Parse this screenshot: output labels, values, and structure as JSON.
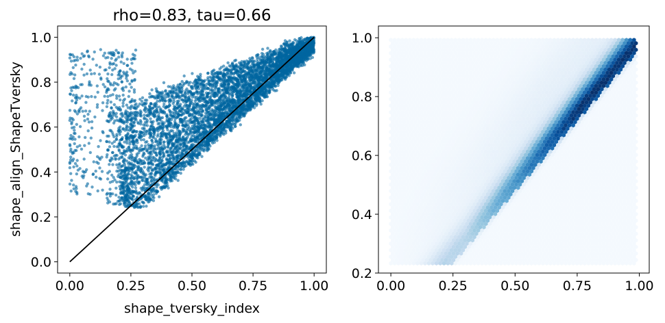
{
  "chart_data": [
    {
      "type": "scatter",
      "title": "rho=0.83, tau=0.66",
      "xlabel": "shape_tversky_index",
      "ylabel": "shape_align_ShapeTversky",
      "xlim": [
        -0.05,
        1.05
      ],
      "ylim": [
        -0.05,
        1.05
      ],
      "xticks": [
        "0.00",
        "0.25",
        "0.50",
        "0.75",
        "1.00"
      ],
      "yticks": [
        "0.0",
        "0.2",
        "0.4",
        "0.6",
        "0.8",
        "1.0"
      ],
      "point_color": "#0066a0",
      "grid": false,
      "reference_line": {
        "x": [
          0.0,
          1.0
        ],
        "y": [
          0.0,
          1.0
        ],
        "color": "#000000"
      },
      "point_cloud": {
        "x_range": [
          0.0,
          1.0
        ],
        "y_range": [
          0.25,
          1.0
        ],
        "dense_region": {
          "x": [
            0.2,
            1.0
          ],
          "y": [
            0.25,
            1.0
          ]
        },
        "sparse_cluster": {
          "x": [
            0.0,
            0.17
          ],
          "y": [
            0.3,
            0.95
          ]
        }
      }
    },
    {
      "type": "heatmap",
      "subtype": "hexbin",
      "title": "",
      "xlabel": "",
      "ylabel": "",
      "xlim": [
        -0.05,
        1.04
      ],
      "ylim": [
        0.2,
        1.04
      ],
      "xticks": [
        "0.00",
        "0.25",
        "0.50",
        "0.75",
        "1.00"
      ],
      "yticks": [
        "0.2",
        "0.4",
        "0.6",
        "0.8",
        "1.0"
      ],
      "colormap": "Blues",
      "extent": {
        "x": [
          0.0,
          0.99
        ],
        "y": [
          0.23,
          1.0
        ]
      },
      "density_ridge": {
        "x": [
          0.4,
          0.99
        ],
        "y": [
          0.4,
          0.98
        ]
      },
      "grid": false
    }
  ]
}
